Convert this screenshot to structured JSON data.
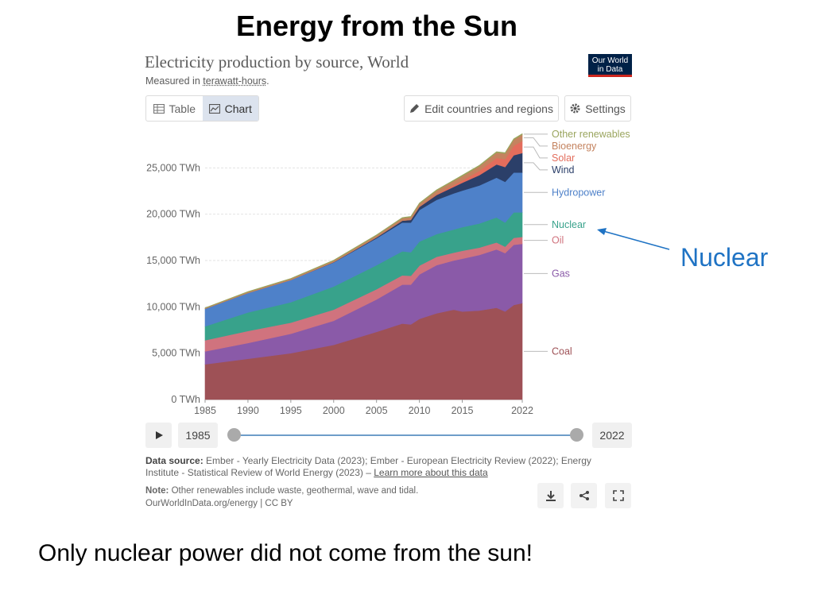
{
  "slide": {
    "title": "Energy from the Sun",
    "annotation": "Nuclear",
    "bottom_text": "Only nuclear power did not come from the sun!"
  },
  "owid": {
    "title": "Electricity production by source, World",
    "subtitle_prefix": "Measured in ",
    "subtitle_link": "terawatt-hours",
    "subtitle_suffix": ".",
    "logo_line1": "Our World",
    "logo_line2": "in Data",
    "tab_table": "Table",
    "tab_chart": "Chart",
    "edit_button": "Edit countries and regions",
    "settings_button": "Settings",
    "start_year": "1985",
    "end_year": "2022",
    "source_label": "Data source:",
    "source_text": " Ember - Yearly Electricity Data (2023); Ember - European Electricity Review (2022); Energy Institute - Statistical Review of World Energy (2023) – ",
    "source_link": "Learn more about this data",
    "note_label": "Note:",
    "note_text": " Other renewables include waste, geothermal, wave and tidal.",
    "footer": "OurWorldInData.org/energy | CC BY",
    "icons": [
      "table-icon",
      "chart-icon",
      "pencil-icon",
      "gear-icon",
      "play-icon",
      "download-icon",
      "share-icon",
      "fullscreen-icon"
    ]
  },
  "chart_data": {
    "type": "area",
    "stacked": true,
    "title": "Electricity production by source, World",
    "ylabel_unit": "TWh",
    "ylim": [
      0,
      30000
    ],
    "yticks": [
      0,
      5000,
      10000,
      15000,
      20000,
      25000
    ],
    "ytick_labels": [
      "0 TWh",
      "5,000 TWh",
      "10,000 TWh",
      "15,000 TWh",
      "20,000 TWh",
      "25,000 TWh"
    ],
    "xticks": [
      1985,
      1990,
      1995,
      2000,
      2005,
      2010,
      2015,
      2022
    ],
    "grid": true,
    "legend": "right (inline labels)",
    "x": [
      1985,
      1990,
      1995,
      2000,
      2005,
      2008,
      2009,
      2010,
      2012,
      2014,
      2015,
      2017,
      2019,
      2020,
      2021,
      2022
    ],
    "series": [
      {
        "name": "Coal",
        "color": "#9e5156",
        "values": [
          3800,
          4400,
          5000,
          5900,
          7300,
          8200,
          8100,
          8700,
          9300,
          9700,
          9500,
          9600,
          9900,
          9500,
          10200,
          10400
        ]
      },
      {
        "name": "Gas",
        "color": "#8a5aa8",
        "values": [
          1400,
          1700,
          2100,
          2600,
          3500,
          4200,
          4300,
          4800,
          5200,
          5300,
          5700,
          6000,
          6300,
          6300,
          6500,
          6400
        ]
      },
      {
        "name": "Oil",
        "color": "#d0737e",
        "values": [
          1200,
          1300,
          1200,
          1200,
          1100,
          1000,
          950,
          950,
          900,
          850,
          850,
          800,
          750,
          700,
          750,
          750
        ]
      },
      {
        "name": "Nuclear",
        "color": "#38a28b",
        "values": [
          1500,
          2000,
          2200,
          2500,
          2600,
          2600,
          2550,
          2600,
          2450,
          2500,
          2550,
          2600,
          2700,
          2600,
          2750,
          2650
        ]
      },
      {
        "name": "Hydropower",
        "color": "#4e81c9",
        "values": [
          1900,
          2100,
          2400,
          2600,
          2900,
          3100,
          3200,
          3400,
          3700,
          3900,
          3950,
          4100,
          4300,
          4400,
          4300,
          4300
        ]
      },
      {
        "name": "Wind",
        "color": "#2b3f69",
        "values": [
          0,
          0,
          0,
          30,
          100,
          200,
          280,
          340,
          520,
          700,
          840,
          1120,
          1420,
          1590,
          1860,
          2100
        ]
      },
      {
        "name": "Solar",
        "color": "#e36d5c",
        "values": [
          0,
          0,
          0,
          0,
          0,
          10,
          20,
          30,
          90,
          190,
          250,
          450,
          700,
          850,
          1030,
          1300
        ]
      },
      {
        "name": "Bioenergy",
        "color": "#c4835f",
        "values": [
          60,
          100,
          120,
          150,
          200,
          260,
          290,
          310,
          380,
          450,
          470,
          520,
          580,
          600,
          650,
          690
        ]
      },
      {
        "name": "Other renewables",
        "color": "#9aa55e",
        "values": [
          40,
          50,
          50,
          60,
          70,
          70,
          70,
          80,
          90,
          90,
          100,
          100,
          100,
          100,
          100,
          100
        ]
      }
    ]
  }
}
